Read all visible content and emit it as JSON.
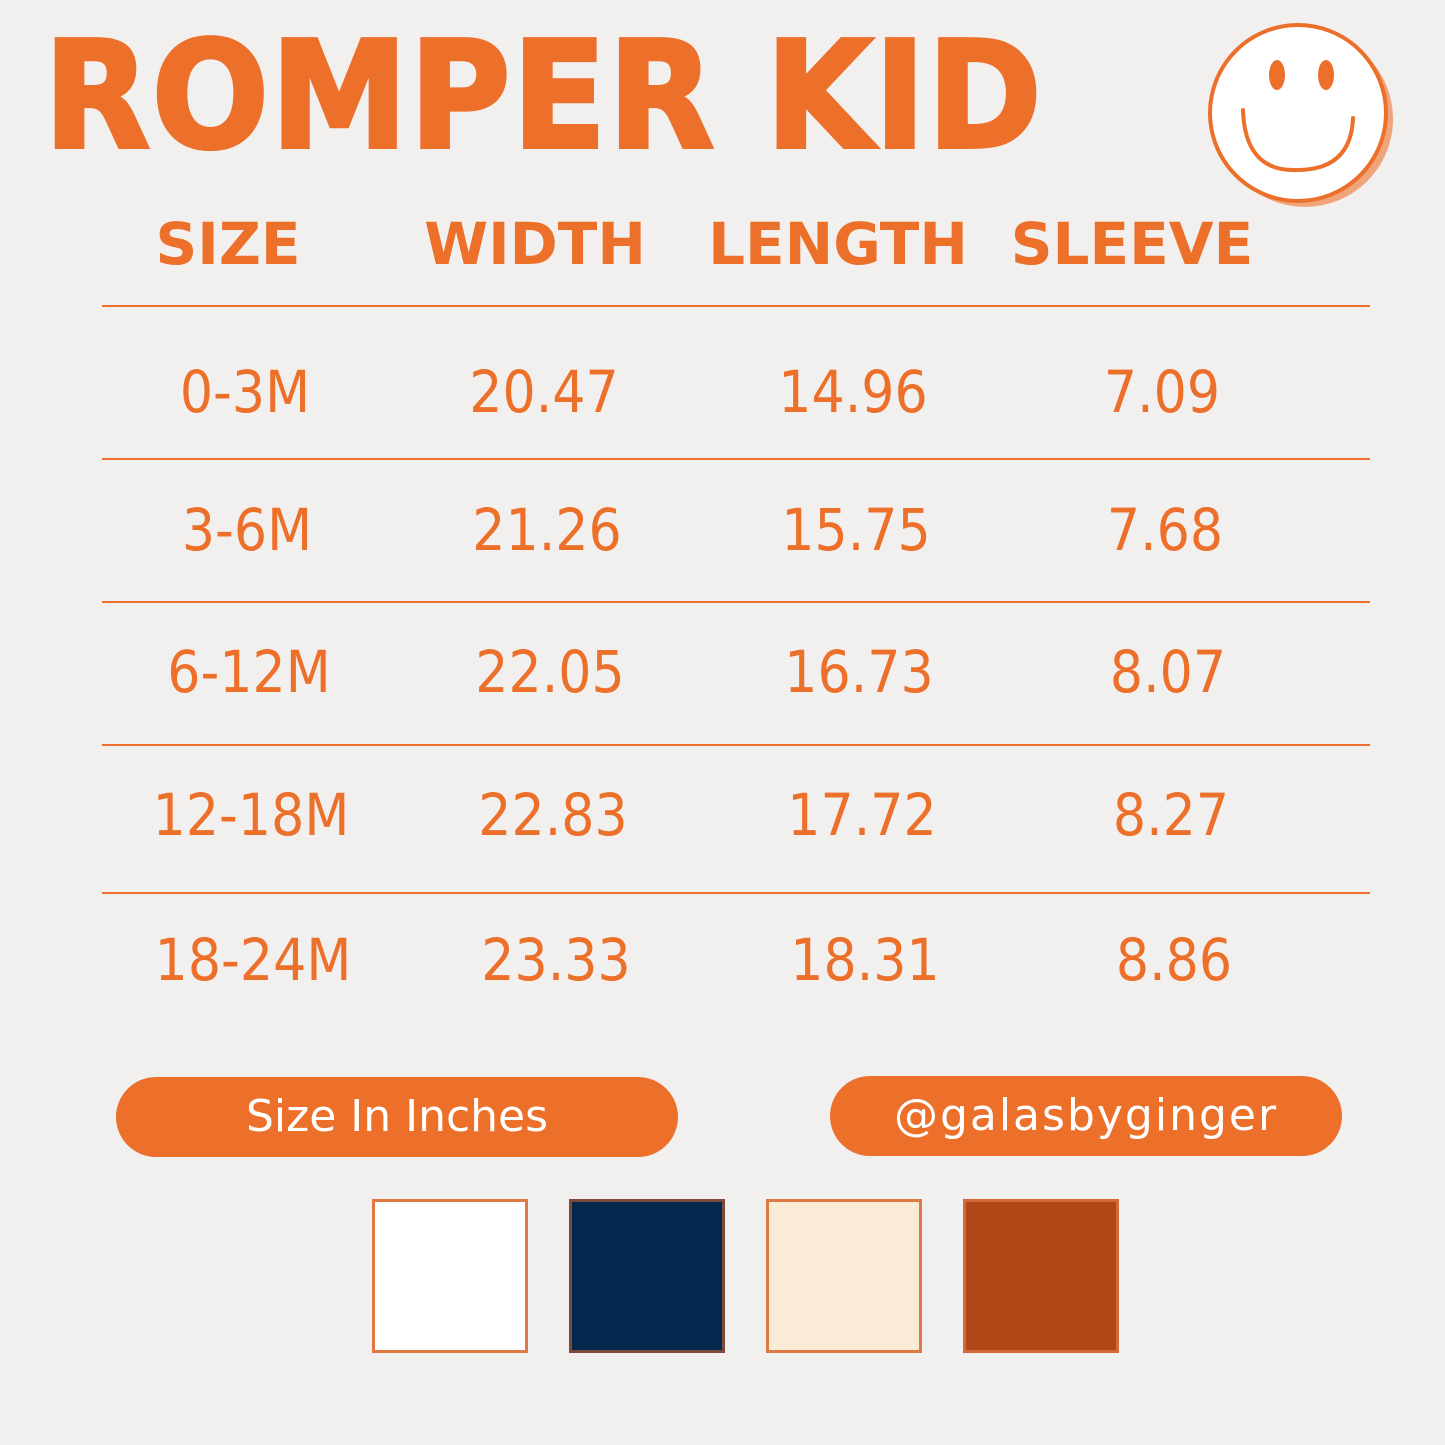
{
  "title": "ROMPER KID",
  "icon": "smiley-face-icon",
  "headers": [
    "SIZE",
    "WIDTH",
    "LENGTH",
    "SLEEVE"
  ],
  "rows": [
    [
      "0-3M",
      "20.47",
      "14.96",
      "7.09"
    ],
    [
      "3-6M",
      "21.26",
      "15.75",
      "7.68"
    ],
    [
      "6-12M",
      "22.05",
      "16.73",
      "8.07"
    ],
    [
      "12-18M",
      "22.83",
      "17.72",
      "8.27"
    ],
    [
      "18-24M",
      "23.33",
      "18.31",
      "8.86"
    ]
  ],
  "unit_label": "Size In Inches",
  "handle": "@galasbyginger",
  "colors": {
    "accent": "#ec6f2a",
    "background": "#f2f0ef"
  },
  "swatches": [
    "#ffffff",
    "#04274d",
    "#faebd7",
    "#b04516"
  ]
}
